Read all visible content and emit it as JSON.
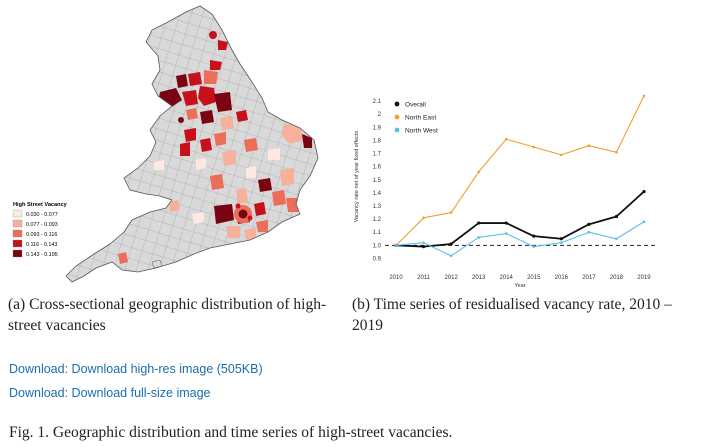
{
  "map": {
    "legend_title": "High Street Vacancy",
    "legend": [
      {
        "label": "0.030 - 0.077",
        "color": "#fde9e1"
      },
      {
        "label": "0.077 - 0.093",
        "color": "#f5b19b"
      },
      {
        "label": "0.093 - 0.116",
        "color": "#ec6d58"
      },
      {
        "label": "0.116 - 0.143",
        "color": "#c8101a"
      },
      {
        "label": "0.143 - 0.195",
        "color": "#7a0411"
      }
    ],
    "no_data_color": "#d9d9d9"
  },
  "chart_data": {
    "type": "line",
    "x": [
      2010,
      2011,
      2012,
      2013,
      2014,
      2015,
      2016,
      2017,
      2018,
      2019
    ],
    "series": [
      {
        "name": "Overall",
        "color": "#111111",
        "values": [
          1.0,
          0.99,
          1.01,
          1.17,
          1.17,
          1.07,
          1.05,
          1.16,
          1.22,
          1.41
        ]
      },
      {
        "name": "North East",
        "color": "#f0a030",
        "values": [
          1.0,
          1.21,
          1.25,
          1.56,
          1.81,
          1.75,
          1.69,
          1.76,
          1.71,
          2.14
        ]
      },
      {
        "name": "North West",
        "color": "#5bc0e8",
        "values": [
          1.0,
          1.02,
          0.92,
          1.06,
          1.09,
          0.99,
          1.02,
          1.1,
          1.05,
          1.18
        ]
      }
    ],
    "xlabel": "Year",
    "ylabel": "Vacancy rate net of year fixed effects",
    "ylim": [
      0.85,
      2.2
    ],
    "yticks": [
      0.9,
      1.0,
      1.1,
      1.2,
      1.3,
      1.4,
      1.5,
      1.6,
      1.7,
      1.8,
      1.9,
      2.0,
      2.1
    ],
    "ytick_labels": [
      "0.9",
      "1.0",
      "1.1",
      "1.2",
      "1.3",
      "1.4",
      "1.5",
      "1.6",
      "1.7",
      "1.8",
      "1.9",
      "2",
      "2.1"
    ],
    "reference_line": 1.0,
    "legend_position": "top-left"
  },
  "captions": {
    "a": "(a) Cross-sectional geographic distribution of high-street vacancies",
    "b": "(b) Time series of residualised vacancy rate, 2010 – 2019"
  },
  "links": {
    "high_res": "Download: Download high-res image (505KB)",
    "full_size": "Download: Download full-size image"
  },
  "figure_caption": "Fig. 1. Geographic distribution and time series of high-street vacancies."
}
